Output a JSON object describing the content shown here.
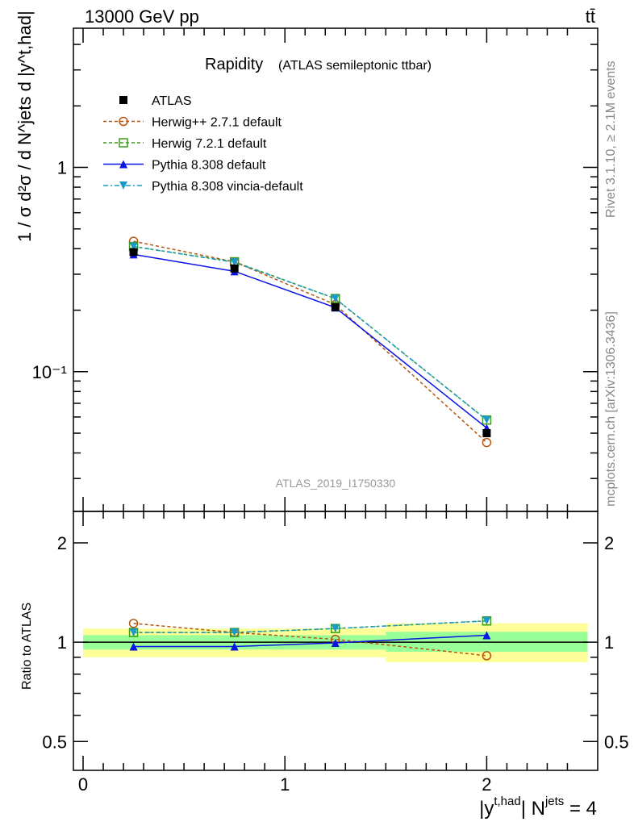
{
  "header": {
    "left": "13000 GeV pp",
    "right": "tt̄"
  },
  "side_labels": {
    "rivet": "Rivet 3.1.10, ≥ 2.1M events",
    "mcplots": "mcplots.cern.ch [arXiv:1306.3436]"
  },
  "watermark": "ATLAS_2019_I1750330",
  "chart_data": [
    {
      "type": "line",
      "title": "Rapidity",
      "subtitle": "(ATLAS semileptonic ttbar)",
      "ylabel": "1 / σ d²σ / d N^jets d |y^t,had|",
      "yscale": "log",
      "ylim": [
        0.0207,
        4.8
      ],
      "xlim": [
        -0.048,
        2.55
      ],
      "yticks": [
        {
          "v": 1,
          "label": "1"
        },
        {
          "v": 0.1,
          "label": "10⁻¹"
        }
      ],
      "legend_position": "top-left",
      "x": [
        0.25,
        0.75,
        1.25,
        2.0
      ],
      "series": [
        {
          "name": "ATLAS",
          "values": [
            0.385,
            0.32,
            0.207,
            0.05
          ],
          "color": "#000000",
          "marker": "square",
          "dash": "none"
        },
        {
          "name": "Herwig++ 2.7.1 default",
          "values": [
            0.435,
            0.345,
            0.213,
            0.045
          ],
          "color": "#b8560f",
          "marker": "open-circle",
          "dash": "4,3"
        },
        {
          "name": "Herwig 7.2.1 default",
          "values": [
            0.41,
            0.345,
            0.228,
            0.058
          ],
          "color": "#3b9c1c",
          "marker": "open-square",
          "dash": "4,3"
        },
        {
          "name": "Pythia 8.308 default",
          "values": [
            0.375,
            0.31,
            0.206,
            0.053
          ],
          "color": "#0a14e6",
          "marker": "triangle-up",
          "dash": "none"
        },
        {
          "name": "Pythia 8.308 vincia-default",
          "values": [
            0.41,
            0.343,
            0.228,
            0.058
          ],
          "color": "#1a9ac4",
          "marker": "triangle-down",
          "dash": "6,3,2,3"
        }
      ]
    },
    {
      "type": "line",
      "ylabel": "Ratio to ATLAS",
      "xlabel": "|y^t,had| N^jets = 4",
      "xlabel_parts": {
        "y": "|y",
        "sup1": "t,had",
        "n": "| N",
        "sup2": "jets",
        "eq": " = 4"
      },
      "yscale": "log",
      "ylim": [
        0.409,
        2.49
      ],
      "xlim": [
        -0.048,
        2.55
      ],
      "yticks": [
        {
          "v": 2,
          "label": "2"
        },
        {
          "v": 1,
          "label": "1"
        },
        {
          "v": 0.5,
          "label": "0.5"
        }
      ],
      "xticks": [
        {
          "v": 0,
          "label": "0"
        },
        {
          "v": 1,
          "label": "1"
        },
        {
          "v": 2,
          "label": "2"
        }
      ],
      "bins": [
        [
          0,
          0.5
        ],
        [
          0.5,
          1.0
        ],
        [
          1.0,
          1.5
        ],
        [
          1.5,
          2.5
        ]
      ],
      "band_total": [
        [
          0.9,
          1.1
        ],
        [
          0.9,
          1.1
        ],
        [
          0.9,
          1.1
        ],
        [
          0.87,
          1.14
        ]
      ],
      "band_stat": [
        [
          0.95,
          1.05
        ],
        [
          0.95,
          1.05
        ],
        [
          0.95,
          1.05
        ],
        [
          0.935,
          1.075
        ]
      ],
      "x": [
        0.25,
        0.75,
        1.25,
        2.0
      ],
      "series": [
        {
          "name": "Herwig++ 2.7.1 default",
          "values": [
            1.14,
            1.07,
            1.02,
            0.91
          ]
        },
        {
          "name": "Herwig 7.2.1 default",
          "values": [
            1.07,
            1.07,
            1.1,
            1.16
          ]
        },
        {
          "name": "Pythia 8.308 default",
          "values": [
            0.97,
            0.97,
            0.995,
            1.05
          ]
        },
        {
          "name": "Pythia 8.308 vincia-default",
          "values": [
            1.07,
            1.07,
            1.1,
            1.16
          ]
        }
      ]
    }
  ]
}
